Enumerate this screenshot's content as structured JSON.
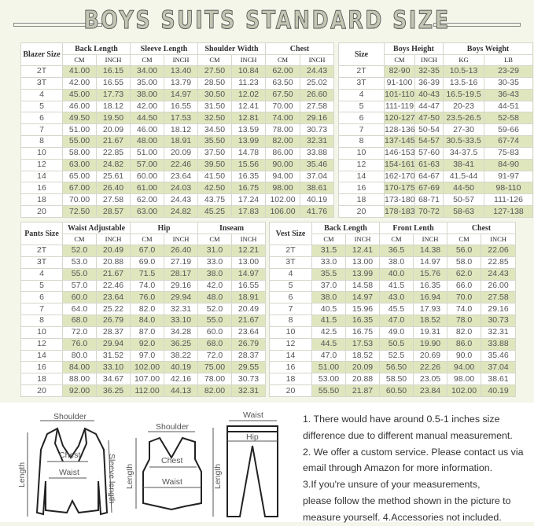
{
  "title": "BOYS SUITS STANDARD SIZE",
  "colors": {
    "stripe": "#dfe6be",
    "background": "#f4f6ea"
  },
  "blazer": {
    "size_label": "Blazer Size",
    "groups": [
      "Back Length",
      "Sleeve Length",
      "Shoulder Width",
      "Chest"
    ],
    "units": [
      "CM",
      "INCH"
    ],
    "rows": [
      [
        "2T",
        "41.00",
        "16.15",
        "34.00",
        "13.40",
        "27.50",
        "10.84",
        "62.00",
        "24.43"
      ],
      [
        "3T",
        "42.00",
        "16.55",
        "35.00",
        "13.79",
        "28.50",
        "11.23",
        "63.50",
        "25.02"
      ],
      [
        "4",
        "45.00",
        "17.73",
        "38.00",
        "14.97",
        "30.50",
        "12.02",
        "67.50",
        "26.60"
      ],
      [
        "5",
        "46.00",
        "18.12",
        "42.00",
        "16.55",
        "31.50",
        "12.41",
        "70.00",
        "27.58"
      ],
      [
        "6",
        "49.50",
        "19.50",
        "44.50",
        "17.53",
        "32.50",
        "12.81",
        "74.00",
        "29.16"
      ],
      [
        "7",
        "51.00",
        "20.09",
        "46.00",
        "18.12",
        "34.50",
        "13.59",
        "78.00",
        "30.73"
      ],
      [
        "8",
        "55.00",
        "21.67",
        "48.00",
        "18.91",
        "35.50",
        "13.99",
        "82.00",
        "32.31"
      ],
      [
        "10",
        "58.00",
        "22.85",
        "51.00",
        "20.09",
        "37.50",
        "14.78",
        "86.00",
        "33.88"
      ],
      [
        "12",
        "63.00",
        "24.82",
        "57.00",
        "22.46",
        "39.50",
        "15.56",
        "90.00",
        "35.46"
      ],
      [
        "14",
        "65.00",
        "25.61",
        "60.00",
        "23.64",
        "41.50",
        "16.35",
        "94.00",
        "37.04"
      ],
      [
        "16",
        "67.00",
        "26.40",
        "61.00",
        "24.03",
        "42.50",
        "16.75",
        "98.00",
        "38.61"
      ],
      [
        "18",
        "70.00",
        "27.58",
        "62.00",
        "24.43",
        "43.75",
        "17.24",
        "102.00",
        "40.19"
      ],
      [
        "20",
        "72.50",
        "28.57",
        "63.00",
        "24.82",
        "45.25",
        "17.83",
        "106.00",
        "41.76"
      ]
    ]
  },
  "size": {
    "size_label": "Size",
    "groups": [
      "Boys Height",
      "Boys Weight"
    ],
    "units": [
      "CM",
      "INCH",
      "KG",
      "LB"
    ],
    "rows": [
      [
        "2T",
        "82-90",
        "32-35",
        "10.5-13",
        "23-29"
      ],
      [
        "3T",
        "91-100",
        "36-39",
        "13.5-16",
        "30-35"
      ],
      [
        "4",
        "101-110",
        "40-43",
        "16.5-19.5",
        "36-43"
      ],
      [
        "5",
        "111-119",
        "44-47",
        "20-23",
        "44-51"
      ],
      [
        "6",
        "120-127",
        "47-50",
        "23.5-26.5",
        "52-58"
      ],
      [
        "7",
        "128-136",
        "50-54",
        "27-30",
        "59-66"
      ],
      [
        "8",
        "137-145",
        "54-57",
        "30.5-33.5",
        "67-74"
      ],
      [
        "10",
        "146-153",
        "57-60",
        "34-37.5",
        "75-83"
      ],
      [
        "12",
        "154-161",
        "61-63",
        "38-41",
        "84-90"
      ],
      [
        "14",
        "162-170",
        "64-67",
        "41.5-44",
        "91-97"
      ],
      [
        "16",
        "170-175",
        "67-69",
        "44-50",
        "98-110"
      ],
      [
        "18",
        "173-180",
        "68-71",
        "50-57",
        "111-126"
      ],
      [
        "20",
        "178-183",
        "70-72",
        "58-63",
        "127-138"
      ]
    ]
  },
  "pants": {
    "size_label": "Pants Size",
    "groups": [
      "Waist Adjustable",
      "Hip",
      "Inseam"
    ],
    "units": [
      "CM",
      "INCH"
    ],
    "rows": [
      [
        "2T",
        "52.0",
        "20.49",
        "67.0",
        "26.40",
        "31.0",
        "12.21"
      ],
      [
        "3T",
        "53.0",
        "20.88",
        "69.0",
        "27.19",
        "33.0",
        "13.00"
      ],
      [
        "4",
        "55.0",
        "21.67",
        "71.5",
        "28.17",
        "38.0",
        "14.97"
      ],
      [
        "5",
        "57.0",
        "22.46",
        "74.0",
        "29.16",
        "42.0",
        "16.55"
      ],
      [
        "6",
        "60.0",
        "23.64",
        "76.0",
        "29.94",
        "48.0",
        "18.91"
      ],
      [
        "7",
        "64.0",
        "25.22",
        "82.0",
        "32.31",
        "52.0",
        "20.49"
      ],
      [
        "8",
        "68.0",
        "26.79",
        "84.0",
        "33.10",
        "55.0",
        "21.67"
      ],
      [
        "10",
        "72.0",
        "28.37",
        "87.0",
        "34.28",
        "60.0",
        "23.64"
      ],
      [
        "12",
        "76.0",
        "29.94",
        "92.0",
        "36.25",
        "68.0",
        "26.79"
      ],
      [
        "14",
        "80.0",
        "31.52",
        "97.0",
        "38.22",
        "72.0",
        "28.37"
      ],
      [
        "16",
        "84.00",
        "33.10",
        "102.00",
        "40.19",
        "75.00",
        "29.55"
      ],
      [
        "18",
        "88.00",
        "34.67",
        "107.00",
        "42.16",
        "78.00",
        "30.73"
      ],
      [
        "20",
        "92.00",
        "36.25",
        "112.00",
        "44.13",
        "82.00",
        "32.31"
      ]
    ]
  },
  "vest": {
    "size_label": "Vest Size",
    "groups": [
      "Back Length",
      "Front Lenth",
      "Chest"
    ],
    "units": [
      "CM",
      "INCH"
    ],
    "rows": [
      [
        "2T",
        "31.5",
        "12.41",
        "36.5",
        "14.38",
        "56.0",
        "22.06"
      ],
      [
        "3T",
        "33.0",
        "13.00",
        "38.0",
        "14.97",
        "58.0",
        "22.85"
      ],
      [
        "4",
        "35.5",
        "13.99",
        "40.0",
        "15.76",
        "62.0",
        "24.43"
      ],
      [
        "5",
        "37.0",
        "14.58",
        "41.5",
        "16.35",
        "66.0",
        "26.00"
      ],
      [
        "6",
        "38.0",
        "14.97",
        "43.0",
        "16.94",
        "70.0",
        "27.58"
      ],
      [
        "7",
        "40.5",
        "15.96",
        "45.5",
        "17.93",
        "74.0",
        "29.16"
      ],
      [
        "8",
        "41.5",
        "16.35",
        "47.0",
        "18.52",
        "78.0",
        "30.73"
      ],
      [
        "10",
        "42.5",
        "16.75",
        "49.0",
        "19.31",
        "82.0",
        "32.31"
      ],
      [
        "12",
        "44.5",
        "17.53",
        "50.5",
        "19.90",
        "86.0",
        "33.88"
      ],
      [
        "14",
        "47.0",
        "18.52",
        "52.5",
        "20.69",
        "90.0",
        "35.46"
      ],
      [
        "16",
        "51.00",
        "20.09",
        "56.50",
        "22.26",
        "94.00",
        "37.04"
      ],
      [
        "18",
        "53.00",
        "20.88",
        "58.50",
        "23.05",
        "98.00",
        "38.61"
      ],
      [
        "20",
        "55.50",
        "21.87",
        "60.50",
        "23.84",
        "102.00",
        "40.19"
      ]
    ]
  },
  "diagram": {
    "blazer": {
      "shoulder": "Shoulder",
      "chest": "Chest",
      "waist": "Waist",
      "length": "Length",
      "sleeve": "Sleeve length"
    },
    "vest": {
      "shoulder": "Shoulder",
      "chest": "Chest",
      "waist": "Waist",
      "length": "Length"
    },
    "pants": {
      "waist": "Waist",
      "hip": "Hip",
      "length": "Length"
    }
  },
  "notes": [
    "1. There would have around 0.5-1 inches size",
    "difference due to different manual measurement.",
    "2. We offer a custom service. Please contact us via",
    "email through Amazon for more information.",
    "3.If you're unsure of your measurements,",
    "please follow the method shown in the picture to",
    "measure yourself. 4.Accessories not included."
  ]
}
